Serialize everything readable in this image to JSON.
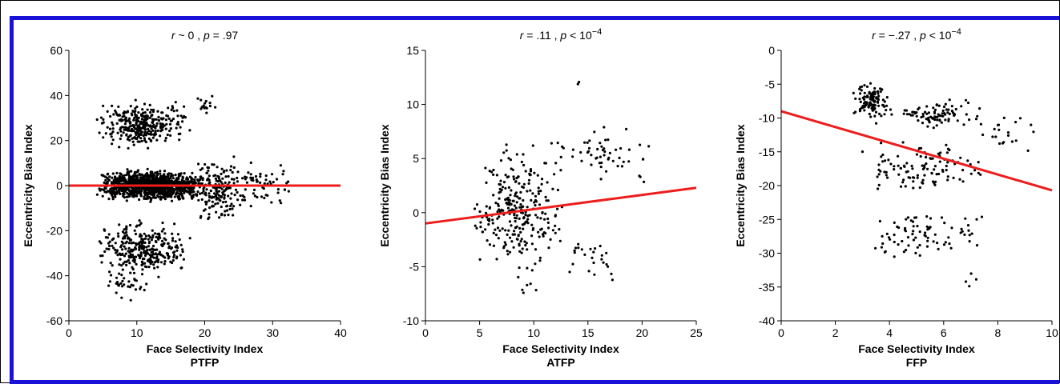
{
  "figure": {
    "border_color": "#1a12d6",
    "fit_color": "#ee1c1c",
    "point_color": "#000000"
  },
  "chart_data": [
    {
      "type": "scatter",
      "title_parts": {
        "var": "r",
        "rel": " ~ 0 , ",
        "pvar": "p",
        "prel": " = .97",
        "exp": ""
      },
      "xlabel": "Face Selectivity Index",
      "ylabel": "Eccentricity Bias Index",
      "panel_label": "PTFP",
      "xlim": [
        0,
        40
      ],
      "ylim": [
        -60,
        60
      ],
      "xticks": [
        0,
        10,
        20,
        30,
        40
      ],
      "yticks": [
        -60,
        -40,
        -20,
        0,
        20,
        40,
        60
      ],
      "fit_line": {
        "x": [
          0,
          40
        ],
        "y": [
          0,
          0
        ]
      },
      "clusters": [
        {
          "x": [
            4,
            20
          ],
          "y": [
            -8,
            8
          ],
          "n": 1200
        },
        {
          "x": [
            4,
            18
          ],
          "y": [
            14,
            40
          ],
          "n": 330
        },
        {
          "x": [
            4,
            18
          ],
          "y": [
            -42,
            -14
          ],
          "n": 300
        },
        {
          "x": [
            5,
            12
          ],
          "y": [
            -52,
            -36
          ],
          "n": 35
        },
        {
          "x": [
            18,
            26
          ],
          "y": [
            -20,
            16
          ],
          "n": 170
        },
        {
          "x": [
            24,
            33
          ],
          "y": [
            -12,
            12
          ],
          "n": 60
        },
        {
          "x": [
            18,
            22
          ],
          "y": [
            30,
            41
          ],
          "n": 15
        }
      ]
    },
    {
      "type": "scatter",
      "title_parts": {
        "var": "r",
        "rel": " = .11 , ",
        "pvar": "p",
        "prel": " < 10",
        "exp": "−4"
      },
      "xlabel": "Face Selectivity Index",
      "ylabel": "Eccentricity Bias Index",
      "panel_label": "ATFP",
      "xlim": [
        0,
        25
      ],
      "ylim": [
        -10,
        15
      ],
      "xticks": [
        0,
        5,
        10,
        15,
        20,
        25
      ],
      "yticks": [
        -10,
        -5,
        0,
        5,
        10,
        15
      ],
      "fit_line": {
        "x": [
          0,
          25
        ],
        "y": [
          -1,
          2.3
        ]
      },
      "clusters": [
        {
          "x": [
            4,
            13
          ],
          "y": [
            -7,
            8
          ],
          "n": 280
        },
        {
          "x": [
            12,
            21
          ],
          "y": [
            2,
            9
          ],
          "n": 55
        },
        {
          "x": [
            13,
            17.5
          ],
          "y": [
            -6.5,
            -2
          ],
          "n": 25
        },
        {
          "x": [
            13.5,
            14.5
          ],
          "y": [
            11.5,
            12.5
          ],
          "n": 2
        },
        {
          "x": [
            8,
            11
          ],
          "y": [
            -8.5,
            -6
          ],
          "n": 5
        }
      ]
    },
    {
      "type": "scatter",
      "title_parts": {
        "var": "r",
        "rel": " = −.27 , ",
        "pvar": "p",
        "prel": " < 10",
        "exp": "−4"
      },
      "xlabel": "Face Selectivity Index",
      "ylabel": "Eccentricity Bias Index",
      "panel_label": "FFP",
      "xlim": [
        0,
        10
      ],
      "ylim": [
        -40,
        0
      ],
      "xticks": [
        0,
        2,
        4,
        6,
        8,
        10
      ],
      "yticks": [
        -40,
        -35,
        -30,
        -25,
        -20,
        -15,
        -10,
        -5,
        0
      ],
      "fit_line": {
        "x": [
          0,
          10
        ],
        "y": [
          -9,
          -20.7
        ]
      },
      "clusters": [
        {
          "x": [
            2.6,
            4
          ],
          "y": [
            -11,
            -4
          ],
          "n": 110
        },
        {
          "x": [
            4,
            7.5
          ],
          "y": [
            -12,
            -7
          ],
          "n": 90
        },
        {
          "x": [
            2.6,
            7.5
          ],
          "y": [
            -22,
            -12
          ],
          "n": 110
        },
        {
          "x": [
            2.6,
            7.8
          ],
          "y": [
            -32,
            -22
          ],
          "n": 80
        },
        {
          "x": [
            7,
            9.6
          ],
          "y": [
            -16,
            -9
          ],
          "n": 20
        },
        {
          "x": [
            6,
            8
          ],
          "y": [
            -36,
            -32
          ],
          "n": 4
        }
      ]
    }
  ]
}
